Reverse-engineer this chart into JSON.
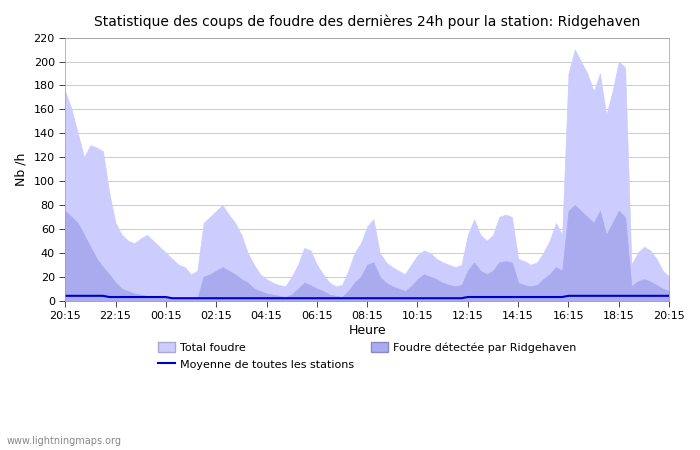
{
  "title": "Statistique des coups de foudre des dernières 24h pour la station: Ridgehaven",
  "xlabel": "Heure",
  "ylabel": "Nb /h",
  "xlim": [
    0,
    96
  ],
  "ylim": [
    0,
    220
  ],
  "yticks": [
    0,
    20,
    40,
    60,
    80,
    100,
    120,
    140,
    160,
    180,
    200,
    220
  ],
  "xtick_labels": [
    "20:15",
    "22:15",
    "00:15",
    "02:15",
    "04:15",
    "06:15",
    "08:15",
    "10:15",
    "12:15",
    "14:15",
    "16:15",
    "18:15",
    "20:15"
  ],
  "xtick_positions": [
    0,
    8,
    16,
    24,
    32,
    40,
    48,
    56,
    64,
    72,
    80,
    88,
    96
  ],
  "color_total": "#ccccff",
  "color_detected": "#aaaaee",
  "color_mean": "#0000cc",
  "watermark": "www.lightningmaps.org",
  "legend_total": "Total foudre",
  "legend_detected": "Foudre détectée par Ridgehaven",
  "legend_mean": "Moyenne de toutes les stations",
  "total_foudre": [
    175,
    160,
    140,
    120,
    130,
    128,
    125,
    90,
    65,
    55,
    50,
    48,
    52,
    55,
    50,
    45,
    40,
    35,
    30,
    28,
    22,
    25,
    65,
    70,
    75,
    80,
    72,
    65,
    55,
    40,
    30,
    22,
    18,
    15,
    13,
    12,
    20,
    30,
    44,
    42,
    30,
    22,
    15,
    12,
    13,
    25,
    40,
    48,
    62,
    68,
    40,
    32,
    28,
    25,
    22,
    30,
    38,
    42,
    40,
    35,
    32,
    30,
    28,
    30,
    55,
    68,
    55,
    50,
    55,
    70,
    72,
    70,
    35,
    33,
    30,
    32,
    40,
    50,
    65,
    55,
    190,
    210,
    200,
    190,
    175,
    190,
    155,
    175,
    200,
    195,
    30,
    40,
    45,
    42,
    35,
    25,
    20
  ],
  "detected_foudre": [
    75,
    70,
    65,
    55,
    45,
    35,
    28,
    22,
    15,
    10,
    8,
    6,
    5,
    4,
    4,
    3,
    3,
    2,
    2,
    2,
    2,
    2,
    20,
    22,
    25,
    28,
    25,
    22,
    18,
    15,
    10,
    8,
    6,
    5,
    4,
    3,
    5,
    10,
    15,
    13,
    10,
    8,
    5,
    4,
    3,
    8,
    15,
    20,
    30,
    32,
    20,
    15,
    12,
    10,
    8,
    12,
    18,
    22,
    20,
    18,
    15,
    13,
    12,
    13,
    25,
    32,
    25,
    22,
    25,
    32,
    33,
    32,
    15,
    13,
    12,
    13,
    18,
    22,
    28,
    25,
    75,
    80,
    75,
    70,
    65,
    75,
    55,
    65,
    75,
    70,
    12,
    16,
    18,
    16,
    13,
    10,
    8
  ],
  "mean_line": [
    4,
    4,
    4,
    4,
    4,
    4,
    4,
    3,
    3,
    3,
    3,
    3,
    3,
    3,
    3,
    3,
    3,
    2,
    2,
    2,
    2,
    2,
    2,
    2,
    2,
    2,
    2,
    2,
    2,
    2,
    2,
    2,
    2,
    2,
    2,
    2,
    2,
    2,
    2,
    2,
    2,
    2,
    2,
    2,
    2,
    2,
    2,
    2,
    2,
    2,
    2,
    2,
    2,
    2,
    2,
    2,
    2,
    2,
    2,
    2,
    2,
    2,
    2,
    2,
    3,
    3,
    3,
    3,
    3,
    3,
    3,
    3,
    3,
    3,
    3,
    3,
    3,
    3,
    3,
    3,
    4,
    4,
    4,
    4,
    4,
    4,
    4,
    4,
    4,
    4,
    4,
    4,
    4,
    4,
    4,
    4,
    4
  ]
}
